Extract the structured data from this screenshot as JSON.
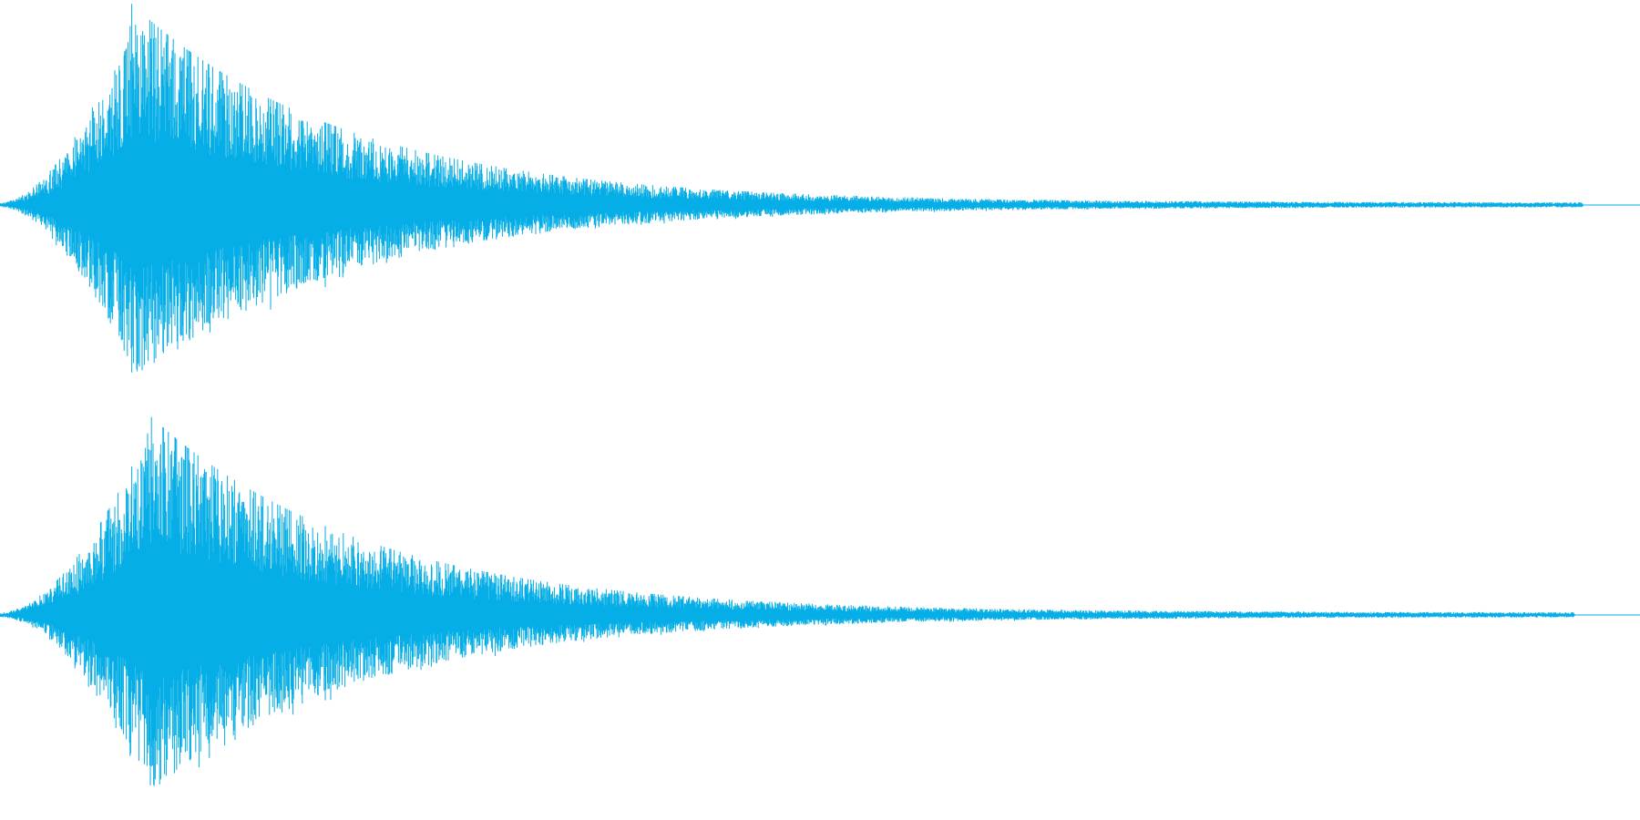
{
  "waveform": {
    "color": "#05aee6",
    "background": "#ffffff",
    "channels": [
      {
        "name": "",
        "attack_fraction": 0.035,
        "peak_time_fraction": 0.08,
        "peak_level": 0.98,
        "decay_constant": 0.13,
        "noise_floor": 0.012,
        "end_fraction": 0.965
      },
      {
        "name": "",
        "attack_fraction": 0.035,
        "peak_time_fraction": 0.09,
        "peak_level": 0.98,
        "decay_constant": 0.13,
        "noise_floor": 0.012,
        "end_fraction": 0.96
      }
    ]
  }
}
